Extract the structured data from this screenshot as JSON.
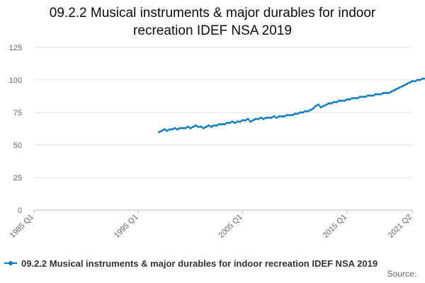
{
  "chart_data": {
    "type": "line",
    "title_lines": [
      "09.2.2 Musical instruments & major durables for indoor",
      "recreation IDEF NSA 2019"
    ],
    "xlabel": "",
    "ylabel": "",
    "x_range": [
      "1985 Q1",
      "2021 Q2"
    ],
    "x_ticks": [
      "1985 Q1",
      "1995 Q1",
      "2005 Q1",
      "2015 Q1",
      "2021 Q2"
    ],
    "y_ticks": [
      0,
      25,
      50,
      75,
      100,
      125
    ],
    "ylim": [
      0,
      125
    ],
    "grid": "horizontal",
    "legend_position": "bottom",
    "source_label": "Source:",
    "series": [
      {
        "name": "09.2.2 Musical instruments & major durables for indoor recreation IDEF NSA 2019",
        "color": "#0b7bbf",
        "start_quarter": "1997 Q1",
        "values": [
          60,
          61,
          62,
          61,
          62,
          62,
          63,
          62,
          63,
          63,
          63,
          64,
          63,
          64,
          65,
          64,
          64,
          63,
          64,
          65,
          64,
          65,
          65,
          66,
          66,
          66,
          67,
          67,
          68,
          67,
          68,
          68,
          69,
          69,
          70,
          68,
          69,
          70,
          70,
          71,
          70,
          71,
          71,
          71,
          72,
          71,
          72,
          72,
          72,
          73,
          73,
          73,
          74,
          74,
          75,
          75,
          76,
          76,
          77,
          78,
          80,
          81,
          79,
          80,
          81,
          82,
          82,
          83,
          83,
          84,
          84,
          84,
          85,
          85,
          86,
          86,
          86,
          87,
          87,
          87,
          88,
          88,
          88,
          89,
          89,
          89,
          90,
          90,
          90,
          91,
          92,
          93,
          94,
          95,
          96,
          97,
          98,
          99,
          99,
          100,
          100,
          101,
          101,
          102,
          102,
          103,
          103,
          104,
          104,
          104,
          105,
          105
        ]
      }
    ]
  }
}
